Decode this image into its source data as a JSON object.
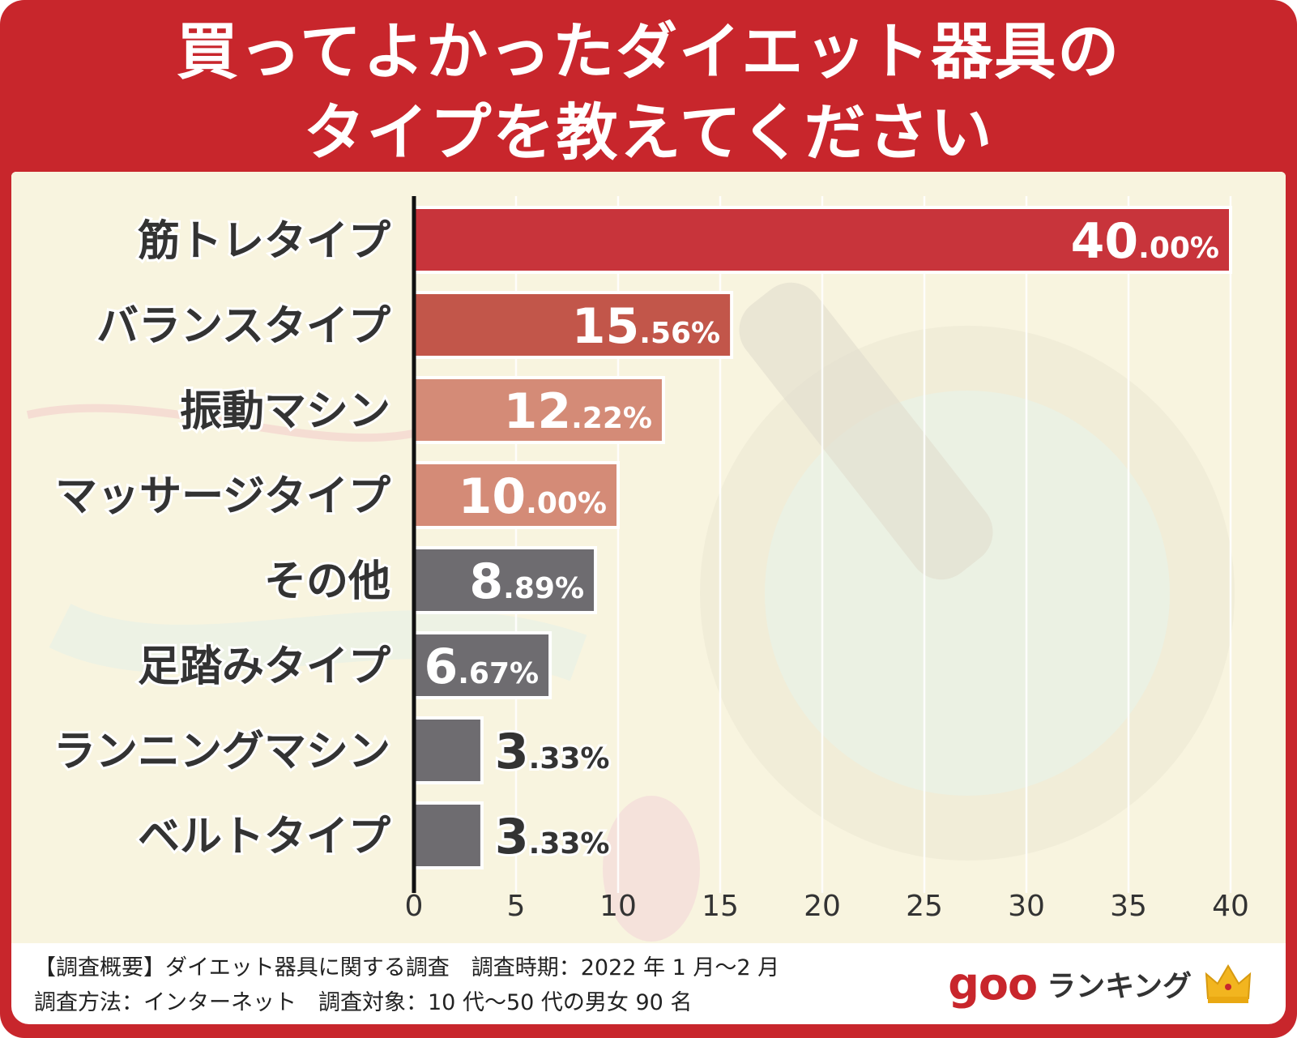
{
  "title": {
    "line1": "買ってよかったダイエット器具の",
    "line2": "タイプを教えてください"
  },
  "chart_data": {
    "type": "bar",
    "orientation": "horizontal",
    "categories": [
      "筋トレタイプ",
      "バランスタイプ",
      "振動マシン",
      "マッサージタイプ",
      "その他",
      "足踏みタイプ",
      "ランニングマシン",
      "ベルトタイプ"
    ],
    "values": [
      40.0,
      15.56,
      12.22,
      10.0,
      8.89,
      6.67,
      3.33,
      3.33
    ],
    "value_labels": [
      {
        "int": "40",
        "dec": ".00%"
      },
      {
        "int": "15",
        "dec": ".56%"
      },
      {
        "int": "12",
        "dec": ".22%"
      },
      {
        "int": "10",
        "dec": ".00%"
      },
      {
        "int": "8",
        "dec": ".89%"
      },
      {
        "int": "6",
        "dec": ".67%"
      },
      {
        "int": "3",
        "dec": ".33%"
      },
      {
        "int": "3",
        "dec": ".33%"
      }
    ],
    "bar_colors": [
      "#c8343b",
      "#c2564a",
      "#d48b77",
      "#d48b77",
      "#6e6c70",
      "#6e6c70",
      "#6e6c70",
      "#6e6c70"
    ],
    "xlim": [
      0,
      40
    ],
    "xticks": [
      "0",
      "5",
      "10",
      "15",
      "20",
      "25",
      "30",
      "35",
      "40"
    ],
    "grid": true
  },
  "footer": {
    "line1": "【調査概要】ダイエット器具に関する調査　調査時期：2022 年 1 月～2 月",
    "line2": "調査方法：インターネット　調査対象：10 代～50 代の男女 90 名"
  },
  "logo": {
    "brand": "goo",
    "text": "ランキング",
    "icon": "crown-icon"
  },
  "colors": {
    "frame": "#c8262c",
    "background": "#efead0",
    "text": "#333333"
  }
}
